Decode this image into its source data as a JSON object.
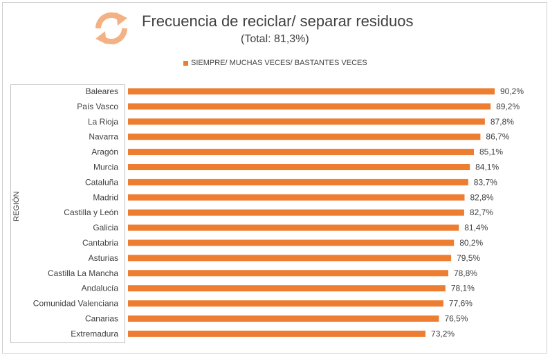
{
  "chart_data": {
    "type": "bar",
    "orientation": "horizontal",
    "title": "Frecuencia de reciclar/ separar residuos",
    "subtitle": "(Total: 81,3%)",
    "ylabel": "REGIÓN",
    "legend": "top-center",
    "xlim": [
      0,
      100
    ],
    "grid": false,
    "series": [
      {
        "name": "SIEMPRE/ MUCHAS VECES/ BASTANTES VECES",
        "color": "#ED7D31",
        "values": [
          90.2,
          89.2,
          87.8,
          86.7,
          85.1,
          84.1,
          83.7,
          82.8,
          82.7,
          81.4,
          80.2,
          79.5,
          78.8,
          78.1,
          77.6,
          76.5,
          73.2
        ],
        "labels": [
          "90,2%",
          "89,2%",
          "87,8%",
          "86,7%",
          "85,1%",
          "84,1%",
          "83,7%",
          "82,8%",
          "82,7%",
          "81,4%",
          "80,2%",
          "79,5%",
          "78,8%",
          "78,1%",
          "77,6%",
          "76,5%",
          "73,2%"
        ]
      }
    ],
    "categories": [
      "Baleares",
      "País Vasco",
      "La Rioja",
      "Navarra",
      "Aragón",
      "Murcia",
      "Cataluña",
      "Madrid",
      "Castilla y León",
      "Galicia",
      "Cantabria",
      "Asturias",
      "Castilla La Mancha",
      "Andalucía",
      "Comunidad Valenciana",
      "Canarias",
      "Extremadura"
    ]
  },
  "logo": {
    "icon": "recycle-arrows-icon",
    "color": "#F4B183"
  }
}
